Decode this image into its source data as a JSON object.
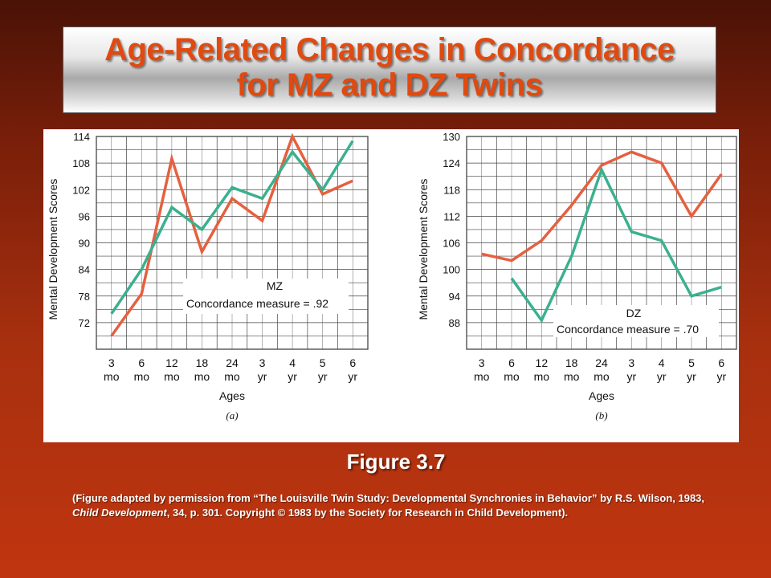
{
  "slide": {
    "title_line1": "Age-Related Changes in Concordance",
    "title_line2": "for MZ and DZ Twins",
    "figure_label": "Figure 3.7",
    "citation": {
      "part1": "(Figure adapted by permission from “The Louisville Twin Study: Developmental Synchronies in Behavior” by R.S. Wilson, 1983, ",
      "journal": "Child Development",
      "part2": ", 34, p. 301.  Copyright © 1983 by the Society for Research in Child Development)."
    }
  },
  "colors": {
    "twin_a": "#e5603f",
    "twin_b": "#3bb08f",
    "grid": "#444444",
    "background_top": "#4a1206",
    "background_bottom": "#c0350f",
    "title_text": "#e04a10"
  },
  "chart_data": [
    {
      "type": "line",
      "panel_label": "(a)",
      "xlabel": "Ages",
      "ylabel": "Mental Development Scores",
      "categories": [
        [
          "3",
          "mo"
        ],
        [
          "6",
          "mo"
        ],
        [
          "12",
          "mo"
        ],
        [
          "18",
          "mo"
        ],
        [
          "24",
          "mo"
        ],
        [
          "3",
          "yr"
        ],
        [
          "4",
          "yr"
        ],
        [
          "5",
          "yr"
        ],
        [
          "6",
          "yr"
        ]
      ],
      "yticks": [
        72,
        78,
        84,
        90,
        96,
        102,
        108,
        114
      ],
      "ylim": [
        66,
        114
      ],
      "annotation_title": "MZ",
      "annotation_text": "Concordance measure = .92",
      "series": [
        {
          "color": "twin_a",
          "values": [
            69,
            78.5,
            109,
            88,
            100,
            95,
            114,
            101,
            104
          ]
        },
        {
          "color": "twin_b",
          "values": [
            74,
            84,
            98,
            93,
            102.5,
            100,
            110.5,
            102,
            113
          ]
        }
      ],
      "grid": true
    },
    {
      "type": "line",
      "panel_label": "(b)",
      "xlabel": "Ages",
      "ylabel": "Mental Development Scores",
      "categories": [
        [
          "3",
          "mo"
        ],
        [
          "6",
          "mo"
        ],
        [
          "12",
          "mo"
        ],
        [
          "18",
          "mo"
        ],
        [
          "24",
          "mo"
        ],
        [
          "3",
          "yr"
        ],
        [
          "4",
          "yr"
        ],
        [
          "5",
          "yr"
        ],
        [
          "6",
          "yr"
        ]
      ],
      "yticks": [
        88,
        94,
        100,
        106,
        112,
        118,
        124,
        130
      ],
      "ylim": [
        82,
        130
      ],
      "annotation_title": "DZ",
      "annotation_text": "Concordance measure = .70",
      "series": [
        {
          "color": "twin_a",
          "values": [
            103.5,
            102,
            106.5,
            114.5,
            123.5,
            126.5,
            124,
            112,
            121.5
          ]
        },
        {
          "color": "twin_b",
          "values": [
            null,
            98,
            88.5,
            103,
            122.5,
            108.5,
            106.5,
            94,
            96
          ]
        }
      ],
      "grid": true
    }
  ]
}
